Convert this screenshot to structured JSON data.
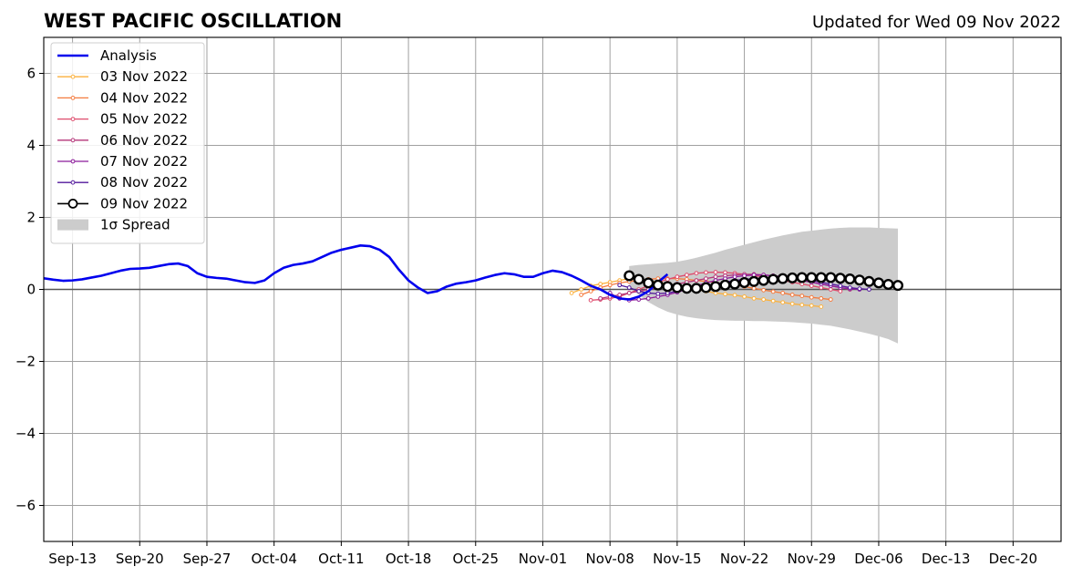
{
  "chart_data": {
    "type": "line",
    "title": "WEST PACIFIC OSCILLATION",
    "subtitle": "Updated for Wed 09 Nov 2022",
    "xlabel": "",
    "ylabel": "",
    "xlim": [
      "2022-09-10",
      "2022-12-25"
    ],
    "ylim": [
      -7,
      7
    ],
    "x_ticks": [
      "2022-09-13",
      "2022-09-20",
      "2022-09-27",
      "2022-10-04",
      "2022-10-11",
      "2022-10-18",
      "2022-10-25",
      "2022-11-01",
      "2022-11-08",
      "2022-11-15",
      "2022-11-22",
      "2022-11-29",
      "2022-12-06",
      "2022-12-13",
      "2022-12-20"
    ],
    "x_tick_labels": [
      "Sep-13",
      "Sep-20",
      "Sep-27",
      "Oct-04",
      "Oct-11",
      "Oct-18",
      "Oct-25",
      "Nov-01",
      "Nov-08",
      "Nov-15",
      "Nov-22",
      "Nov-29",
      "Dec-06",
      "Dec-13",
      "Dec-20"
    ],
    "y_ticks": [
      -6,
      -4,
      -2,
      0,
      2,
      4,
      6
    ],
    "y_tick_labels": [
      "−6",
      "−4",
      "−2",
      "0",
      "2",
      "4",
      "6"
    ],
    "grid": true,
    "legend_position": "upper-left",
    "colors": {
      "analysis": "#0000ee",
      "spread": "#cccccc",
      "grid": "#a0a0a0",
      "zero_line": "#555555"
    },
    "series": [
      {
        "name": "Analysis",
        "color": "#0000ee",
        "style": "line-thick",
        "start": "2022-09-10",
        "values": [
          0.31,
          0.27,
          0.24,
          0.25,
          0.28,
          0.33,
          0.38,
          0.45,
          0.52,
          0.57,
          0.58,
          0.6,
          0.65,
          0.7,
          0.72,
          0.65,
          0.45,
          0.35,
          0.32,
          0.3,
          0.25,
          0.2,
          0.18,
          0.25,
          0.45,
          0.6,
          0.68,
          0.72,
          0.78,
          0.9,
          1.02,
          1.1,
          1.16,
          1.22,
          1.2,
          1.1,
          0.9,
          0.55,
          0.25,
          0.05,
          -0.1,
          -0.05,
          0.08,
          0.16,
          0.2,
          0.25,
          0.33,
          0.4,
          0.45,
          0.42,
          0.35,
          0.35,
          0.45,
          0.52,
          0.48,
          0.38,
          0.25,
          0.1,
          0.0,
          -0.15,
          -0.25,
          -0.28,
          -0.2,
          -0.05,
          0.2,
          0.42
        ]
      },
      {
        "name": "03 Nov 2022",
        "color": "#fbb13c",
        "style": "small-marker",
        "start": "2022-11-04",
        "values": [
          -0.1,
          0.0,
          0.1,
          0.15,
          0.2,
          0.25,
          0.3,
          0.28,
          0.25,
          0.2,
          0.15,
          0.1,
          0.05,
          0.0,
          -0.05,
          -0.1,
          -0.13,
          -0.16,
          -0.2,
          -0.25,
          -0.28,
          -0.32,
          -0.36,
          -0.4,
          -0.43,
          -0.45,
          -0.48
        ]
      },
      {
        "name": "04 Nov 2022",
        "color": "#f47b3e",
        "style": "small-marker",
        "start": "2022-11-05",
        "values": [
          -0.15,
          -0.05,
          0.05,
          0.12,
          0.18,
          0.22,
          0.25,
          0.28,
          0.3,
          0.3,
          0.3,
          0.28,
          0.25,
          0.22,
          0.2,
          0.15,
          0.12,
          0.08,
          0.03,
          -0.02,
          -0.06,
          -0.1,
          -0.15,
          -0.18,
          -0.22,
          -0.25,
          -0.28
        ]
      },
      {
        "name": "05 Nov 2022",
        "color": "#de4b6c",
        "style": "small-marker",
        "start": "2022-11-06",
        "values": [
          -0.3,
          -0.28,
          -0.25,
          -0.2,
          -0.1,
          0.0,
          0.1,
          0.2,
          0.28,
          0.35,
          0.4,
          0.45,
          0.47,
          0.48,
          0.47,
          0.45,
          0.42,
          0.38,
          0.35,
          0.3,
          0.25,
          0.2,
          0.15,
          0.1,
          0.05,
          0.0,
          -0.05
        ]
      },
      {
        "name": "06 Nov 2022",
        "color": "#b5367a",
        "style": "small-marker",
        "start": "2022-11-07",
        "values": [
          -0.25,
          -0.2,
          -0.15,
          -0.1,
          -0.05,
          0.0,
          0.05,
          0.1,
          0.15,
          0.2,
          0.25,
          0.3,
          0.35,
          0.38,
          0.4,
          0.42,
          0.42,
          0.4,
          0.38,
          0.35,
          0.3,
          0.25,
          0.2,
          0.15,
          0.1,
          0.05,
          0.0
        ]
      },
      {
        "name": "07 Nov 2022",
        "color": "#8b1a9a",
        "style": "small-marker",
        "start": "2022-11-08",
        "values": [
          -0.1,
          -0.25,
          -0.3,
          -0.28,
          -0.25,
          -0.2,
          -0.15,
          -0.08,
          0.0,
          0.1,
          0.18,
          0.25,
          0.3,
          0.35,
          0.38,
          0.4,
          0.4,
          0.38,
          0.35,
          0.3,
          0.25,
          0.2,
          0.15,
          0.1,
          0.05,
          0.02,
          0.0
        ]
      },
      {
        "name": "08 Nov 2022",
        "color": "#52189b",
        "style": "small-marker",
        "start": "2022-11-09",
        "values": [
          0.12,
          0.05,
          -0.05,
          -0.1,
          -0.12,
          -0.1,
          -0.05,
          0.0,
          0.05,
          0.1,
          0.15,
          0.2,
          0.25,
          0.28,
          0.3,
          0.32,
          0.33,
          0.33,
          0.32,
          0.3,
          0.25,
          0.2,
          0.15,
          0.1,
          0.05,
          0.02,
          0.0
        ]
      },
      {
        "name": "09 Nov 2022",
        "color": "#000000",
        "style": "big-marker",
        "start": "2022-11-10",
        "values": [
          0.38,
          0.28,
          0.18,
          0.12,
          0.08,
          0.05,
          0.03,
          0.03,
          0.05,
          0.08,
          0.12,
          0.15,
          0.19,
          0.22,
          0.25,
          0.28,
          0.3,
          0.32,
          0.33,
          0.33,
          0.33,
          0.33,
          0.31,
          0.29,
          0.26,
          0.22,
          0.18,
          0.14,
          0.11
        ]
      }
    ],
    "spread": {
      "name": "1σ Spread",
      "color": "#cccccc",
      "start": "2022-11-10",
      "upper": [
        0.65,
        0.68,
        0.7,
        0.72,
        0.74,
        0.77,
        0.82,
        0.88,
        0.95,
        1.02,
        1.1,
        1.17,
        1.24,
        1.31,
        1.38,
        1.44,
        1.5,
        1.55,
        1.6,
        1.63,
        1.66,
        1.69,
        1.71,
        1.72,
        1.72,
        1.72,
        1.71,
        1.7,
        1.69
      ],
      "lower": [
        0.05,
        -0.15,
        -0.35,
        -0.5,
        -0.62,
        -0.7,
        -0.76,
        -0.8,
        -0.83,
        -0.85,
        -0.86,
        -0.87,
        -0.87,
        -0.88,
        -0.88,
        -0.89,
        -0.9,
        -0.91,
        -0.93,
        -0.95,
        -0.98,
        -1.01,
        -1.06,
        -1.11,
        -1.17,
        -1.23,
        -1.3,
        -1.38,
        -1.5
      ]
    }
  }
}
